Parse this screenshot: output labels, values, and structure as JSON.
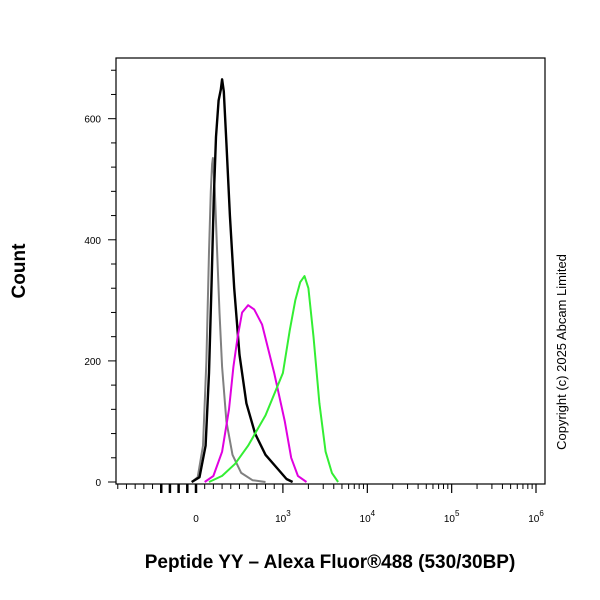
{
  "chart_data": {
    "type": "line",
    "title": "",
    "xlabel": "Peptide YY – Alexa Fluor®488 (530/30BP)",
    "ylabel": "Count",
    "x_scale": "biexponential",
    "ylim": [
      0,
      700
    ],
    "y_ticks": [
      0,
      200,
      400,
      600
    ],
    "x_ticks": [
      {
        "value": 0,
        "base": "0",
        "exp": ""
      },
      {
        "value": 1000,
        "base": "10",
        "exp": "3"
      },
      {
        "value": 10000,
        "base": "10",
        "exp": "4"
      },
      {
        "value": 100000,
        "base": "10",
        "exp": "5"
      },
      {
        "value": 1000000,
        "base": "10",
        "exp": "6"
      }
    ],
    "grid": false,
    "legend": "none",
    "series": [
      {
        "color": "#808080",
        "points": [
          [
            -50,
            0
          ],
          [
            20,
            8
          ],
          [
            80,
            60
          ],
          [
            120,
            200
          ],
          [
            150,
            380
          ],
          [
            170,
            480
          ],
          [
            185,
            525
          ],
          [
            195,
            535
          ],
          [
            205,
            510
          ],
          [
            220,
            470
          ],
          [
            240,
            390
          ],
          [
            270,
            280
          ],
          [
            300,
            190
          ],
          [
            350,
            100
          ],
          [
            420,
            45
          ],
          [
            520,
            15
          ],
          [
            650,
            3
          ],
          [
            800,
            0
          ]
        ]
      },
      {
        "color": "#000000",
        "points": [
          [
            -50,
            0
          ],
          [
            40,
            8
          ],
          [
            110,
            60
          ],
          [
            150,
            180
          ],
          [
            180,
            330
          ],
          [
            205,
            470
          ],
          [
            230,
            570
          ],
          [
            260,
            630
          ],
          [
            285,
            648
          ],
          [
            300,
            665
          ],
          [
            320,
            645
          ],
          [
            350,
            560
          ],
          [
            390,
            440
          ],
          [
            440,
            320
          ],
          [
            500,
            210
          ],
          [
            580,
            130
          ],
          [
            680,
            80
          ],
          [
            800,
            45
          ],
          [
            950,
            20
          ],
          [
            1100,
            5
          ],
          [
            1300,
            0
          ]
        ]
      },
      {
        "color": "#E000E0",
        "points": [
          [
            100,
            0
          ],
          [
            200,
            10
          ],
          [
            300,
            50
          ],
          [
            380,
            120
          ],
          [
            430,
            190
          ],
          [
            480,
            240
          ],
          [
            530,
            280
          ],
          [
            600,
            292
          ],
          [
            670,
            285
          ],
          [
            760,
            260
          ],
          [
            900,
            180
          ],
          [
            1050,
            100
          ],
          [
            1250,
            40
          ],
          [
            1500,
            10
          ],
          [
            1900,
            0
          ]
        ]
      },
      {
        "color": "#33EE33",
        "points": [
          [
            150,
            0
          ],
          [
            300,
            10
          ],
          [
            450,
            30
          ],
          [
            600,
            60
          ],
          [
            800,
            110
          ],
          [
            1000,
            180
          ],
          [
            1200,
            250
          ],
          [
            1400,
            300
          ],
          [
            1600,
            330
          ],
          [
            1800,
            340
          ],
          [
            2000,
            320
          ],
          [
            2300,
            240
          ],
          [
            2700,
            130
          ],
          [
            3200,
            50
          ],
          [
            3800,
            15
          ],
          [
            4500,
            0
          ]
        ]
      }
    ]
  },
  "copyright": "Copyright (c) 2025 Abcam Limited"
}
